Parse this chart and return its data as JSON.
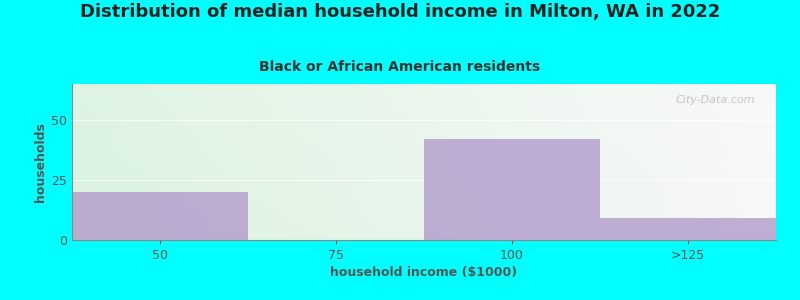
{
  "title": "Distribution of median household income in Milton, WA in 2022",
  "subtitle": "Black or African American residents",
  "xlabel": "household income ($1000)",
  "ylabel": "households",
  "background_color": "#00FFFF",
  "bar_color": "#b39dcc",
  "categories": [
    "50",
    "75",
    "100",
    ">125"
  ],
  "values": [
    20,
    0,
    42,
    9
  ],
  "ylim": [
    0,
    65
  ],
  "yticks": [
    0,
    25,
    50
  ],
  "title_fontsize": 13,
  "subtitle_fontsize": 10,
  "axis_label_fontsize": 9,
  "tick_fontsize": 9,
  "title_color": "#222222",
  "subtitle_color": "#333333",
  "label_color": "#555555",
  "tick_color": "#555555",
  "watermark_text": "City-Data.com",
  "watermark_color": "#aaaaaa"
}
